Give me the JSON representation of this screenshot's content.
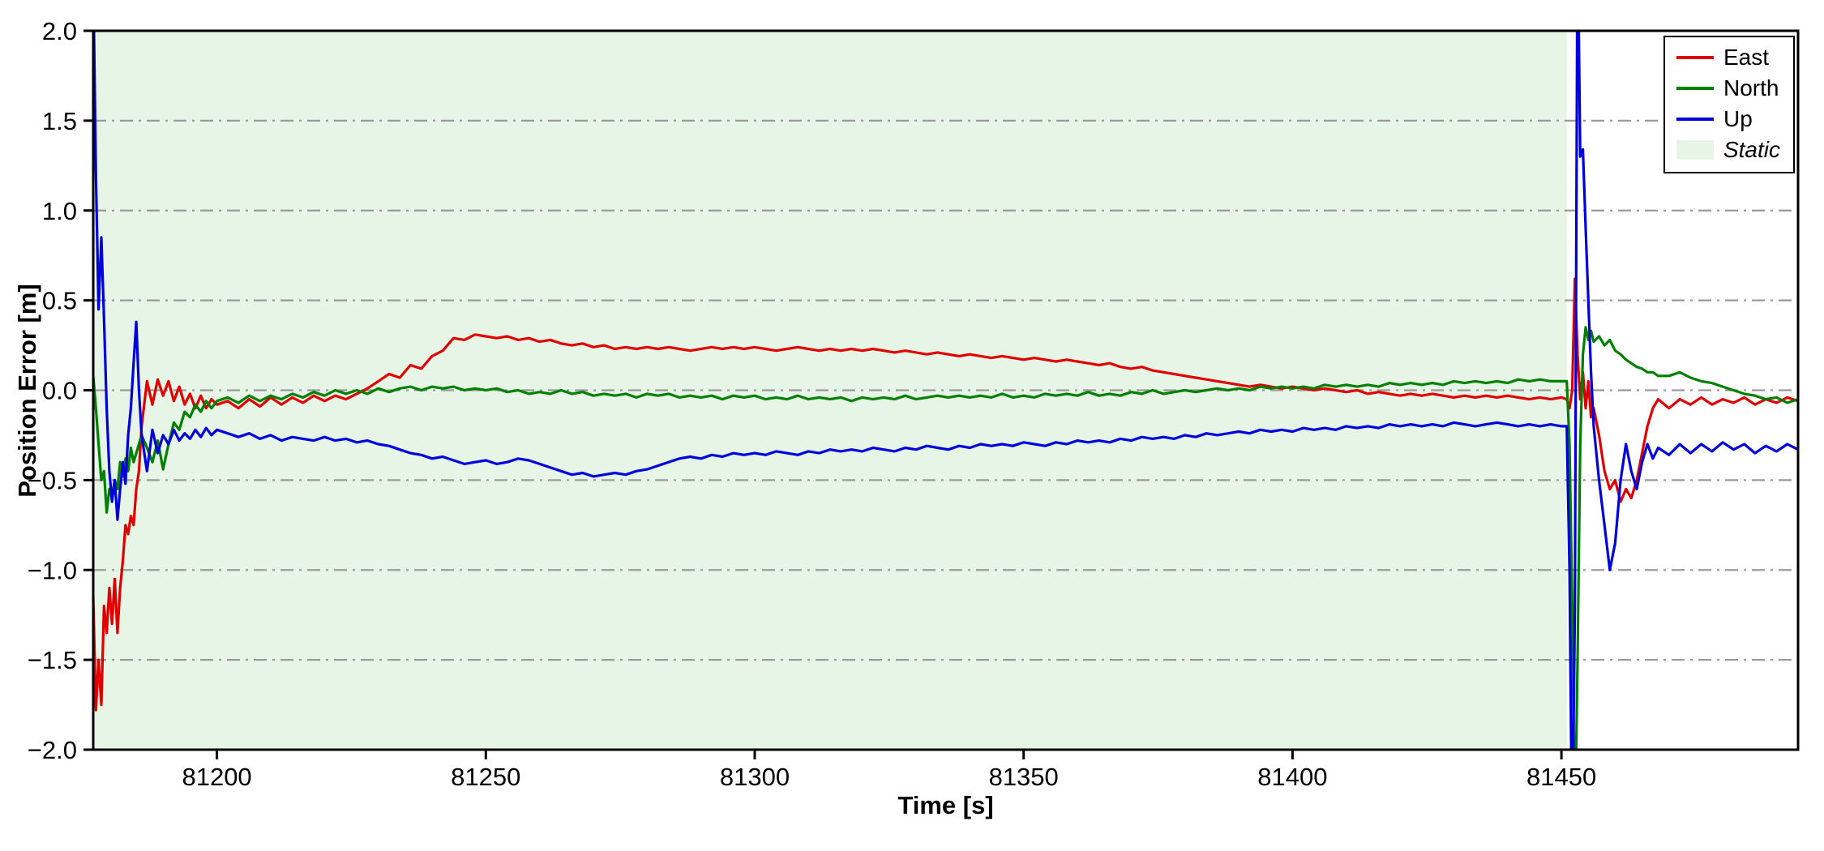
{
  "chart_data": {
    "type": "line",
    "title": "",
    "xlabel": "Time [s]",
    "ylabel": "Position Error [m]",
    "xlim": [
      81177,
      81494
    ],
    "ylim": [
      -2.0,
      2.0
    ],
    "xticks": [
      81200,
      81250,
      81300,
      81350,
      81400,
      81450
    ],
    "xtick_labels": [
      "81200",
      "81250",
      "81300",
      "81350",
      "81400",
      "81450"
    ],
    "yticks": [
      -2.0,
      -1.5,
      -1.0,
      -0.5,
      0.0,
      0.5,
      1.0,
      1.5,
      2.0
    ],
    "ytick_labels": [
      "−2.0",
      "−1.5",
      "−1.0",
      "−0.5",
      "0.0",
      "0.5",
      "1.0",
      "1.5",
      "2.0"
    ],
    "grid": {
      "axis": "y",
      "style": "dash-dot",
      "color": "#9a9a9a"
    },
    "legend_position": "upper right",
    "static_region": {
      "label": "Static",
      "x0": 81177,
      "x1": 81451,
      "color": "#e6f5e6"
    },
    "x": [
      81177,
      81177.5,
      81178,
      81178.5,
      81179,
      81179.5,
      81180,
      81180.5,
      81181,
      81181.5,
      81182,
      81182.5,
      81183,
      81183.5,
      81184,
      81184.5,
      81185,
      81185.5,
      81186,
      81187,
      81188,
      81189,
      81190,
      81191,
      81192,
      81193,
      81194,
      81195,
      81196,
      81197,
      81198,
      81199,
      81200,
      81202,
      81204,
      81206,
      81208,
      81210,
      81212,
      81214,
      81216,
      81218,
      81220,
      81222,
      81224,
      81226,
      81228,
      81230,
      81232,
      81234,
      81236,
      81238,
      81240,
      81242,
      81244,
      81246,
      81248,
      81250,
      81252,
      81254,
      81256,
      81258,
      81260,
      81262,
      81264,
      81266,
      81268,
      81270,
      81272,
      81274,
      81276,
      81278,
      81280,
      81282,
      81284,
      81286,
      81288,
      81290,
      81292,
      81294,
      81296,
      81298,
      81300,
      81302,
      81304,
      81306,
      81308,
      81310,
      81312,
      81314,
      81316,
      81318,
      81320,
      81322,
      81324,
      81326,
      81328,
      81330,
      81332,
      81334,
      81336,
      81338,
      81340,
      81342,
      81344,
      81346,
      81348,
      81350,
      81352,
      81354,
      81356,
      81358,
      81360,
      81362,
      81364,
      81366,
      81368,
      81370,
      81372,
      81374,
      81376,
      81378,
      81380,
      81382,
      81384,
      81386,
      81388,
      81390,
      81392,
      81394,
      81396,
      81398,
      81400,
      81402,
      81404,
      81406,
      81408,
      81410,
      81412,
      81414,
      81416,
      81418,
      81420,
      81422,
      81424,
      81426,
      81428,
      81430,
      81432,
      81434,
      81436,
      81438,
      81440,
      81442,
      81444,
      81446,
      81448,
      81450,
      81451,
      81451.5,
      81452,
      81452.5,
      81453,
      81453.5,
      81454,
      81454.5,
      81455,
      81455.5,
      81456,
      81457,
      81458,
      81459,
      81460,
      81461,
      81462,
      81463,
      81464,
      81465,
      81466,
      81467,
      81468,
      81470,
      81472,
      81474,
      81476,
      81478,
      81480,
      81482,
      81484,
      81486,
      81488,
      81490,
      81492,
      81494
    ],
    "series": [
      {
        "name": "East",
        "color": "#e00000",
        "y": [
          -1.15,
          -1.78,
          -1.5,
          -1.75,
          -1.2,
          -1.35,
          -1.1,
          -1.3,
          -1.05,
          -1.35,
          -1.1,
          -0.95,
          -0.75,
          -0.8,
          -0.7,
          -0.75,
          -0.55,
          -0.45,
          -0.2,
          0.05,
          -0.08,
          0.06,
          -0.03,
          0.05,
          -0.06,
          0.02,
          -0.08,
          -0.02,
          -0.1,
          -0.03,
          -0.1,
          -0.05,
          -0.08,
          -0.06,
          -0.1,
          -0.05,
          -0.09,
          -0.04,
          -0.08,
          -0.04,
          -0.07,
          -0.03,
          -0.06,
          -0.03,
          -0.05,
          -0.02,
          0.01,
          0.05,
          0.09,
          0.07,
          0.14,
          0.12,
          0.19,
          0.22,
          0.29,
          0.28,
          0.31,
          0.3,
          0.29,
          0.3,
          0.28,
          0.29,
          0.27,
          0.28,
          0.26,
          0.25,
          0.26,
          0.24,
          0.25,
          0.23,
          0.24,
          0.23,
          0.24,
          0.23,
          0.24,
          0.23,
          0.22,
          0.23,
          0.24,
          0.23,
          0.24,
          0.23,
          0.24,
          0.23,
          0.22,
          0.23,
          0.24,
          0.23,
          0.22,
          0.23,
          0.22,
          0.23,
          0.22,
          0.23,
          0.22,
          0.21,
          0.22,
          0.21,
          0.2,
          0.21,
          0.2,
          0.19,
          0.2,
          0.19,
          0.18,
          0.19,
          0.18,
          0.17,
          0.18,
          0.17,
          0.16,
          0.17,
          0.16,
          0.15,
          0.14,
          0.15,
          0.13,
          0.12,
          0.13,
          0.11,
          0.1,
          0.09,
          0.08,
          0.07,
          0.06,
          0.05,
          0.04,
          0.03,
          0.02,
          0.03,
          0.02,
          0.01,
          0.02,
          0.01,
          0.0,
          0.01,
          0.0,
          -0.01,
          0.0,
          -0.02,
          -0.01,
          -0.02,
          -0.03,
          -0.02,
          -0.03,
          -0.02,
          -0.03,
          -0.04,
          -0.03,
          -0.04,
          -0.03,
          -0.04,
          -0.03,
          -0.04,
          -0.05,
          -0.04,
          -0.05,
          -0.04,
          -0.05,
          -0.1,
          0.0,
          0.62,
          0.2,
          -0.05,
          0.1,
          -0.1,
          0.05,
          -0.15,
          -0.1,
          -0.25,
          -0.45,
          -0.55,
          -0.5,
          -0.62,
          -0.55,
          -0.6,
          -0.5,
          -0.35,
          -0.2,
          -0.1,
          -0.05,
          -0.1,
          -0.05,
          -0.08,
          -0.04,
          -0.08,
          -0.05,
          -0.07,
          -0.04,
          -0.08,
          -0.05,
          -0.07,
          -0.04,
          -0.06
        ]
      },
      {
        "name": "North",
        "color": "#008000",
        "y": [
          0.08,
          -0.1,
          -0.3,
          -0.5,
          -0.45,
          -0.68,
          -0.55,
          -0.6,
          -0.5,
          -0.55,
          -0.4,
          -0.48,
          -0.38,
          -0.45,
          -0.32,
          -0.4,
          -0.35,
          -0.3,
          -0.25,
          -0.32,
          -0.4,
          -0.28,
          -0.44,
          -0.3,
          -0.18,
          -0.22,
          -0.12,
          -0.15,
          -0.08,
          -0.12,
          -0.06,
          -0.1,
          -0.06,
          -0.04,
          -0.07,
          -0.03,
          -0.06,
          -0.03,
          -0.05,
          -0.02,
          -0.04,
          -0.01,
          -0.03,
          0.0,
          -0.02,
          0.0,
          -0.02,
          0.01,
          -0.01,
          0.01,
          0.02,
          0.0,
          0.02,
          0.01,
          0.02,
          0.0,
          0.01,
          0.0,
          0.01,
          -0.01,
          0.0,
          -0.02,
          -0.01,
          -0.02,
          0.0,
          -0.02,
          -0.01,
          -0.03,
          -0.02,
          -0.03,
          -0.02,
          -0.04,
          -0.02,
          -0.03,
          -0.02,
          -0.04,
          -0.03,
          -0.04,
          -0.03,
          -0.05,
          -0.03,
          -0.04,
          -0.03,
          -0.05,
          -0.04,
          -0.05,
          -0.03,
          -0.05,
          -0.04,
          -0.05,
          -0.04,
          -0.06,
          -0.04,
          -0.05,
          -0.04,
          -0.05,
          -0.03,
          -0.05,
          -0.04,
          -0.03,
          -0.04,
          -0.03,
          -0.04,
          -0.03,
          -0.04,
          -0.02,
          -0.04,
          -0.03,
          -0.04,
          -0.02,
          -0.03,
          -0.02,
          -0.03,
          -0.01,
          -0.03,
          -0.02,
          -0.03,
          -0.01,
          -0.02,
          0.0,
          -0.02,
          -0.01,
          0.0,
          -0.01,
          0.0,
          0.01,
          0.0,
          0.01,
          0.0,
          0.02,
          0.01,
          0.02,
          0.01,
          0.02,
          0.01,
          0.03,
          0.02,
          0.03,
          0.02,
          0.03,
          0.02,
          0.04,
          0.03,
          0.04,
          0.03,
          0.04,
          0.03,
          0.05,
          0.04,
          0.05,
          0.04,
          0.05,
          0.04,
          0.06,
          0.05,
          0.06,
          0.05,
          0.05,
          0.05,
          -0.3,
          -1.2,
          -2.5,
          -1.5,
          -0.3,
          0.2,
          0.35,
          0.28,
          0.33,
          0.27,
          0.3,
          0.25,
          0.28,
          0.22,
          0.2,
          0.17,
          0.15,
          0.13,
          0.12,
          0.1,
          0.1,
          0.08,
          0.08,
          0.1,
          0.07,
          0.05,
          0.04,
          0.02,
          0.0,
          -0.02,
          -0.03,
          -0.05,
          -0.04,
          -0.07,
          -0.05
        ]
      },
      {
        "name": "Up",
        "color": "#0000dd",
        "y": [
          2.3,
          1.2,
          0.45,
          0.85,
          0.4,
          -0.1,
          -0.45,
          -0.62,
          -0.5,
          -0.72,
          -0.55,
          -0.4,
          -0.52,
          -0.25,
          -0.1,
          0.15,
          0.38,
          0.0,
          -0.25,
          -0.45,
          -0.22,
          -0.35,
          -0.25,
          -0.3,
          -0.22,
          -0.28,
          -0.24,
          -0.27,
          -0.22,
          -0.26,
          -0.21,
          -0.25,
          -0.22,
          -0.24,
          -0.26,
          -0.24,
          -0.27,
          -0.25,
          -0.28,
          -0.26,
          -0.27,
          -0.28,
          -0.26,
          -0.28,
          -0.27,
          -0.29,
          -0.28,
          -0.3,
          -0.31,
          -0.33,
          -0.35,
          -0.36,
          -0.38,
          -0.37,
          -0.39,
          -0.41,
          -0.4,
          -0.39,
          -0.41,
          -0.4,
          -0.38,
          -0.39,
          -0.41,
          -0.43,
          -0.45,
          -0.47,
          -0.46,
          -0.48,
          -0.47,
          -0.46,
          -0.47,
          -0.45,
          -0.44,
          -0.42,
          -0.4,
          -0.38,
          -0.37,
          -0.38,
          -0.36,
          -0.37,
          -0.35,
          -0.36,
          -0.35,
          -0.36,
          -0.34,
          -0.35,
          -0.36,
          -0.34,
          -0.35,
          -0.33,
          -0.34,
          -0.33,
          -0.34,
          -0.32,
          -0.33,
          -0.34,
          -0.32,
          -0.33,
          -0.31,
          -0.32,
          -0.33,
          -0.31,
          -0.32,
          -0.3,
          -0.31,
          -0.3,
          -0.31,
          -0.29,
          -0.3,
          -0.31,
          -0.29,
          -0.3,
          -0.28,
          -0.29,
          -0.28,
          -0.29,
          -0.27,
          -0.28,
          -0.26,
          -0.27,
          -0.26,
          -0.27,
          -0.25,
          -0.26,
          -0.24,
          -0.25,
          -0.24,
          -0.23,
          -0.24,
          -0.22,
          -0.23,
          -0.22,
          -0.23,
          -0.21,
          -0.22,
          -0.21,
          -0.22,
          -0.2,
          -0.21,
          -0.2,
          -0.21,
          -0.19,
          -0.2,
          -0.19,
          -0.2,
          -0.19,
          -0.2,
          -0.18,
          -0.19,
          -0.2,
          -0.19,
          -0.18,
          -0.19,
          -0.2,
          -0.19,
          -0.2,
          -0.19,
          -0.2,
          -0.2,
          -1.0,
          -2.6,
          -1.2,
          2.6,
          1.3,
          1.34,
          0.9,
          0.5,
          0.1,
          -0.2,
          -0.5,
          -0.75,
          -1.0,
          -0.85,
          -0.5,
          -0.3,
          -0.45,
          -0.55,
          -0.4,
          -0.3,
          -0.38,
          -0.32,
          -0.36,
          -0.3,
          -0.35,
          -0.3,
          -0.34,
          -0.29,
          -0.33,
          -0.3,
          -0.35,
          -0.31,
          -0.34,
          -0.3,
          -0.33
        ]
      }
    ]
  }
}
